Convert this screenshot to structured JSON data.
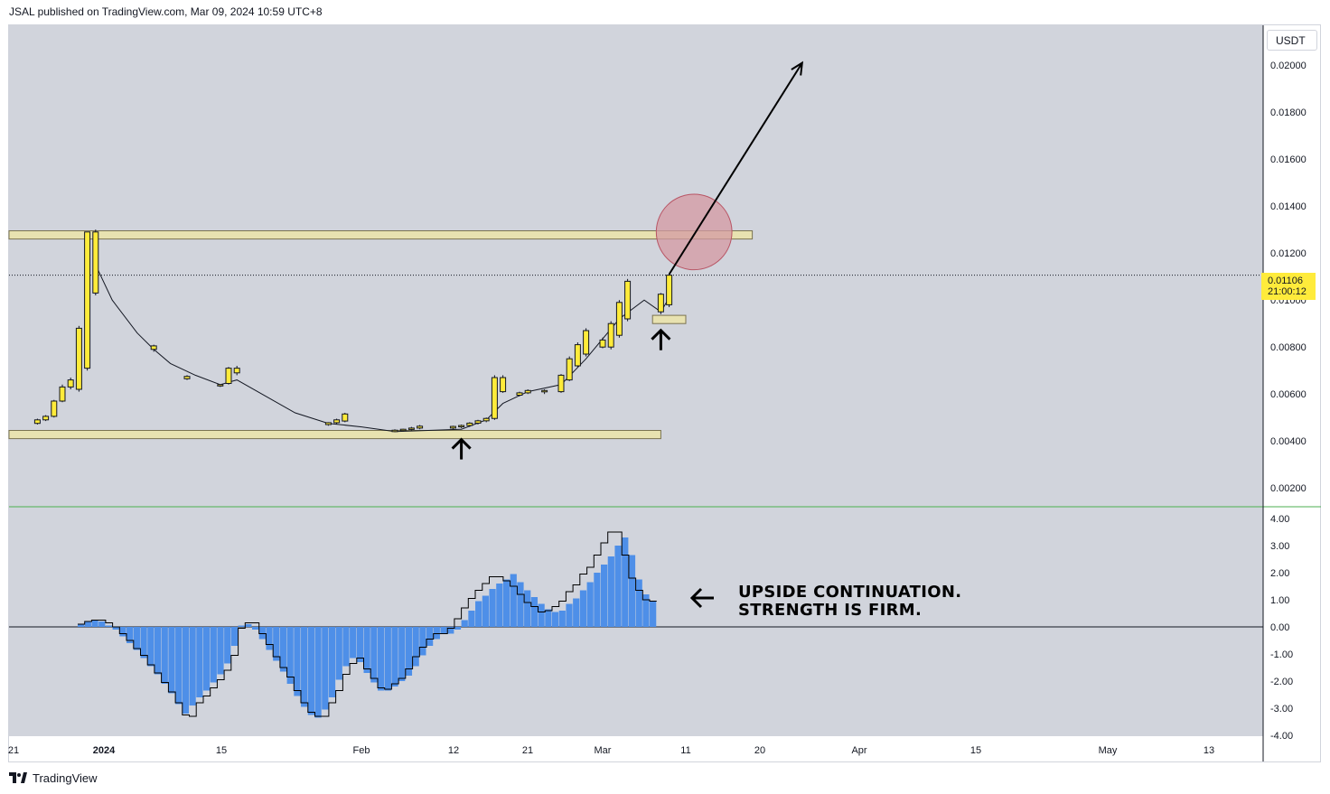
{
  "publisher_line": "JSAL published on TradingView.com, Mar 09, 2024 10:59 UTC+8",
  "currency_button": "USDT",
  "current_price": "0.01106",
  "countdown": "21:00:12",
  "annotation": {
    "line1": "UPSIDE CONTINUATION.",
    "line2": "STRENGTH IS FIRM."
  },
  "brand": "TradingView",
  "colors": {
    "background": "#d1d4dc",
    "candle": "#ffeb3b",
    "zone": "#e8e2b0",
    "histogram": "#4e8fe8",
    "pane_divider": "#4caf50",
    "circle_fill": "#d49aa3"
  },
  "x_axis_labels": [
    "21",
    "2024",
    "15",
    "Feb",
    "12",
    "21",
    "Mar",
    "11",
    "20",
    "Apr",
    "15",
    "May",
    "13"
  ],
  "price_axis_labels": [
    "0.02000",
    "0.01800",
    "0.01600",
    "0.01400",
    "0.01200",
    "0.01000",
    "0.00800",
    "0.00600",
    "0.00400",
    "0.00200"
  ],
  "osc_axis_labels": [
    "4.00",
    "3.00",
    "2.00",
    "1.00",
    "0.00",
    "-1.00",
    "-2.00",
    "-3.00",
    "-4.00"
  ],
  "chart_data": [
    {
      "type": "candlestick",
      "title": "",
      "ylim": [
        0.0012,
        0.0217
      ],
      "grid": false,
      "ohlc": [
        [
          0.00475,
          0.00495,
          0.0047,
          0.0049
        ],
        [
          0.0049,
          0.0051,
          0.00485,
          0.00505
        ],
        [
          0.00505,
          0.00575,
          0.005,
          0.0057
        ],
        [
          0.0057,
          0.0064,
          0.00565,
          0.0063
        ],
        [
          0.0063,
          0.0067,
          0.0062,
          0.0066
        ],
        [
          0.0062,
          0.0089,
          0.0061,
          0.0088
        ],
        [
          0.0071,
          0.0129,
          0.007,
          0.0129
        ],
        [
          0.0129,
          0.013,
          0.0102,
          0.0103
        ],
        [
          0.0079,
          0.0081,
          0.0078,
          0.00805
        ],
        [
          0.00665,
          0.0068,
          0.0066,
          0.00675
        ],
        [
          0.00635,
          0.0064,
          0.0063,
          0.0064
        ],
        [
          0.00645,
          0.00715,
          0.0064,
          0.0071
        ],
        [
          0.0071,
          0.0072,
          0.0068,
          0.0069
        ],
        [
          0.0047,
          0.0048,
          0.00465,
          0.00478
        ],
        [
          0.00478,
          0.00495,
          0.0047,
          0.0049
        ],
        [
          0.00485,
          0.0052,
          0.0048,
          0.00515
        ],
        [
          0.0044,
          0.0045,
          0.00438,
          0.00446
        ],
        [
          0.00446,
          0.00452,
          0.0044,
          0.0045
        ],
        [
          0.0045,
          0.0046,
          0.00445,
          0.00455
        ],
        [
          0.00455,
          0.00468,
          0.0045,
          0.00463
        ],
        [
          0.00455,
          0.00465,
          0.0045,
          0.00462
        ],
        [
          0.00462,
          0.0047,
          0.00455,
          0.00466
        ],
        [
          0.00466,
          0.0048,
          0.0046,
          0.00476
        ],
        [
          0.00476,
          0.0049,
          0.0047,
          0.00486
        ],
        [
          0.00486,
          0.005,
          0.0048,
          0.00496
        ],
        [
          0.00496,
          0.0068,
          0.0049,
          0.0067
        ],
        [
          0.0067,
          0.0068,
          0.00605,
          0.0061
        ],
        [
          0.00595,
          0.0061,
          0.0059,
          0.00605
        ],
        [
          0.00605,
          0.0062,
          0.006,
          0.00615
        ],
        [
          0.00615,
          0.0062,
          0.006,
          0.0061
        ],
        [
          0.0061,
          0.00685,
          0.00605,
          0.0068
        ],
        [
          0.0066,
          0.0076,
          0.00655,
          0.0075
        ],
        [
          0.0072,
          0.0082,
          0.00715,
          0.0081
        ],
        [
          0.0077,
          0.0088,
          0.0076,
          0.0087
        ],
        [
          0.008,
          0.0084,
          0.00795,
          0.0083
        ],
        [
          0.008,
          0.0091,
          0.0079,
          0.009
        ],
        [
          0.0085,
          0.01,
          0.0084,
          0.0099
        ],
        [
          0.0092,
          0.0109,
          0.0091,
          0.0108
        ],
        [
          0.0095,
          0.0103,
          0.0094,
          0.01025
        ],
        [
          0.0098,
          0.0111,
          0.0097,
          0.01106
        ]
      ],
      "candle_dates": [
        "Dec 24",
        "Dec 25",
        "Dec 26",
        "Dec 27",
        "Dec 28",
        "Dec 29",
        "Dec 30",
        "Dec 31",
        "Jan 7",
        "Jan 11",
        "Jan 15",
        "Jan 16",
        "Jan 17",
        "Jan 28",
        "Jan 29",
        "Jan 30",
        "Feb 5",
        "Feb 6",
        "Feb 7",
        "Feb 8",
        "Feb 12",
        "Feb 13",
        "Feb 14",
        "Feb 15",
        "Feb 16",
        "Feb 17",
        "Feb 18",
        "Feb 20",
        "Feb 21",
        "Feb 23",
        "Feb 25",
        "Feb 26",
        "Feb 27",
        "Feb 28",
        "Mar 1",
        "Mar 2",
        "Mar 3",
        "Mar 4",
        "Mar 8",
        "Mar 9"
      ],
      "moving_average": [
        [
          "Dec 31",
          0.0115
        ],
        [
          "Jan 2",
          0.01
        ],
        [
          "Jan 5",
          0.0086
        ],
        [
          "Jan 7",
          0.0079
        ],
        [
          "Jan 9",
          0.0073
        ],
        [
          "Jan 12",
          0.0068
        ],
        [
          "Jan 15",
          0.0064
        ],
        [
          "Jan 17",
          0.0066
        ],
        [
          "Jan 20",
          0.006
        ],
        [
          "Jan 24",
          0.0052
        ],
        [
          "Jan 28",
          0.00475
        ],
        [
          "Feb 1",
          0.0046
        ],
        [
          "Feb 5",
          0.0044
        ],
        [
          "Feb 9",
          0.00445
        ],
        [
          "Feb 13",
          0.0045
        ],
        [
          "Feb 16",
          0.0049
        ],
        [
          "Feb 18",
          0.0056
        ],
        [
          "Feb 21",
          0.0061
        ],
        [
          "Feb 25",
          0.0064
        ],
        [
          "Feb 28",
          0.0075
        ],
        [
          "Mar 3",
          0.0092
        ],
        [
          "Mar 6",
          0.01
        ],
        [
          "Mar 8",
          0.0095
        ],
        [
          "Mar 9",
          0.0101
        ]
      ],
      "zones": [
        {
          "from": "Dec 19",
          "to": "Mar 19",
          "low": 0.0126,
          "high": 0.01295
        },
        {
          "from": "Dec 19",
          "to": "Mar 8",
          "low": 0.0041,
          "high": 0.00445
        },
        {
          "from": "Mar 7",
          "to": "Mar 11",
          "low": 0.009,
          "high": 0.00935
        }
      ],
      "arrow_up_markers": [
        [
          "Feb 13",
          0.0036
        ],
        [
          "Mar 8",
          0.00825
        ]
      ],
      "projection_arrow": {
        "from": [
          "Mar 9",
          0.0111
        ],
        "to": [
          "Mar 25",
          0.0201
        ]
      },
      "highlight_circle": {
        "center": [
          "Mar 12",
          0.0129
        ],
        "radius_date_days": 3.5
      }
    },
    {
      "type": "bar",
      "title": "",
      "ylim": [
        -4.0,
        4.0
      ],
      "grid": false,
      "histogram": [
        0.1,
        0.2,
        0.25,
        0.2,
        0.05,
        -0.1,
        -0.35,
        -0.6,
        -0.85,
        -1.15,
        -1.45,
        -1.75,
        -2.1,
        -2.45,
        -2.85,
        -3.2,
        -2.9,
        -2.6,
        -2.35,
        -2.05,
        -1.75,
        -1.35,
        -0.7,
        0.05,
        0.1,
        -0.1,
        -0.45,
        -0.85,
        -1.25,
        -1.65,
        -2.1,
        -2.55,
        -2.95,
        -3.25,
        -3.35,
        -3.05,
        -2.6,
        -1.95,
        -1.45,
        -1.15,
        -1.3,
        -1.7,
        -2.05,
        -2.35,
        -2.35,
        -2.2,
        -2.0,
        -1.8,
        -1.45,
        -1.05,
        -0.7,
        -0.45,
        -0.25,
        -0.25,
        -0.1,
        0.25,
        0.6,
        0.95,
        1.15,
        1.4,
        1.6,
        1.75,
        1.95,
        1.65,
        1.35,
        1.1,
        0.85,
        0.65,
        0.55,
        0.6,
        0.85,
        1.05,
        1.35,
        1.65,
        2.0,
        2.3,
        2.6,
        3.0,
        3.3,
        2.65,
        1.75,
        1.2,
        0.95
      ],
      "signal_line": [
        0.1,
        0.2,
        0.25,
        0.25,
        0.15,
        0.0,
        -0.25,
        -0.5,
        -0.8,
        -1.05,
        -1.4,
        -1.7,
        -2.05,
        -2.4,
        -2.8,
        -3.25,
        -3.3,
        -2.8,
        -2.55,
        -2.25,
        -1.95,
        -1.6,
        -1.05,
        -0.05,
        0.15,
        0.15,
        -0.25,
        -0.65,
        -1.1,
        -1.5,
        -1.85,
        -2.35,
        -2.8,
        -3.15,
        -3.3,
        -3.3,
        -2.8,
        -2.35,
        -1.75,
        -1.35,
        -1.15,
        -1.55,
        -1.9,
        -2.25,
        -2.3,
        -2.1,
        -1.9,
        -1.55,
        -1.1,
        -0.75,
        -0.45,
        -0.25,
        -0.25,
        -0.05,
        0.3,
        0.7,
        1.05,
        1.35,
        1.6,
        1.85,
        1.85,
        1.7,
        1.5,
        1.2,
        0.9,
        0.75,
        0.55,
        0.6,
        0.75,
        0.95,
        1.3,
        1.55,
        1.95,
        2.2,
        2.65,
        3.1,
        3.5,
        3.5,
        2.65,
        1.8,
        1.35,
        1.0,
        0.95
      ]
    }
  ]
}
